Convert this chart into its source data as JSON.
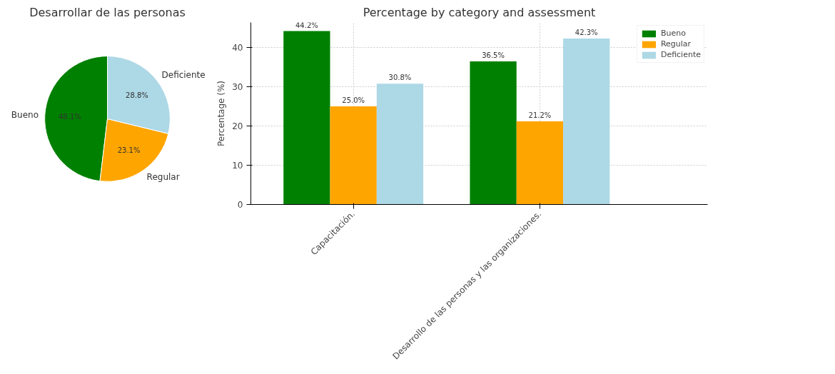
{
  "chart_data": [
    {
      "type": "pie",
      "title": "Desarrollar de las personas",
      "categories": [
        "Bueno",
        "Regular",
        "Deficiente"
      ],
      "values": [
        48.1,
        23.1,
        28.8
      ],
      "colors": [
        "#008000",
        "#ffa500",
        "#add8e6"
      ],
      "value_labels": [
        "48.1%",
        "23.1%",
        "28.8%"
      ]
    },
    {
      "type": "bar",
      "title": "Percentage by category and assessment",
      "ylabel": "Percentage (%)",
      "categories": [
        "Capacitación.",
        "Desarrollo de las personas y las organizaciones."
      ],
      "series": [
        {
          "name": "Bueno",
          "color": "#008000",
          "values": [
            44.2,
            36.5
          ],
          "value_labels": [
            "44.2%",
            "36.5%"
          ]
        },
        {
          "name": "Regular",
          "color": "#ffa500",
          "values": [
            25.0,
            21.2
          ],
          "value_labels": [
            "25.0%",
            "21.2%"
          ]
        },
        {
          "name": "Deficiente",
          "color": "#add8e6",
          "values": [
            30.8,
            42.3
          ],
          "value_labels": [
            "30.8%",
            "42.3%"
          ]
        }
      ],
      "ylim": [
        0,
        46.4
      ],
      "yticks": [
        0,
        10,
        20,
        30,
        40
      ],
      "grid": true,
      "legend": "top right"
    }
  ]
}
